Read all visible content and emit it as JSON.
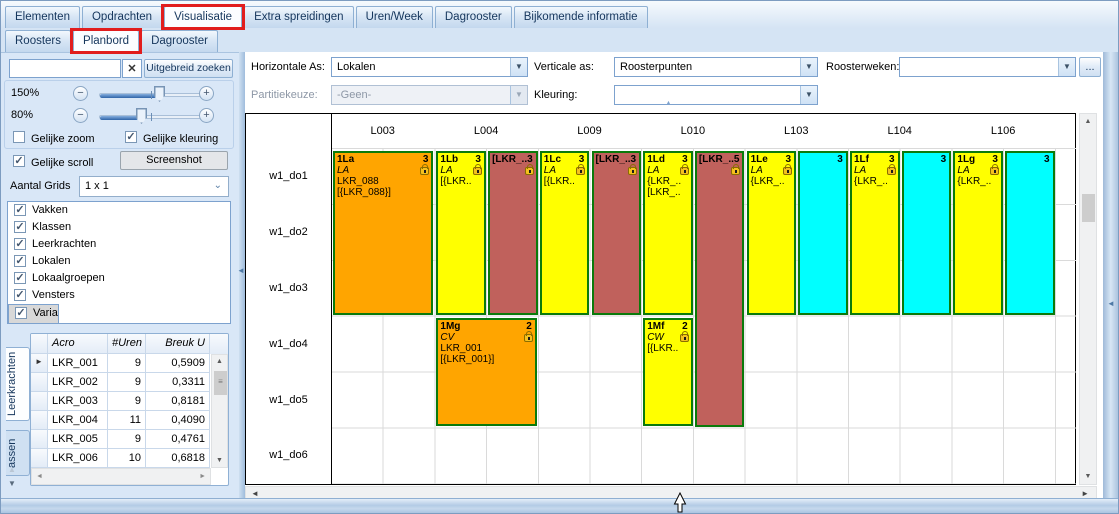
{
  "icons": {
    "clear": "✕",
    "dropdown_arrow": "▼",
    "chevron_down": "⌄",
    "more": "...",
    "scroll_up": "▲",
    "scroll_down": "▼",
    "scroll_left": "◄",
    "scroll_right": "►",
    "collapse_left": "◄",
    "collapse_up": "▲",
    "row_marker": "►",
    "check": "✓",
    "minus": "−",
    "plus": "+",
    "grip": "≡"
  },
  "main_tabs": {
    "items": [
      {
        "label": "Elementen",
        "selected": false,
        "annotated": false
      },
      {
        "label": "Opdrachten",
        "selected": false,
        "annotated": false
      },
      {
        "label": "Visualisatie",
        "selected": true,
        "annotated": true
      },
      {
        "label": "Extra spreidingen",
        "selected": false,
        "annotated": false
      },
      {
        "label": "Uren/Week",
        "selected": false,
        "annotated": false
      },
      {
        "label": "Dagrooster",
        "selected": false,
        "annotated": false
      },
      {
        "label": "Bijkomende informatie",
        "selected": false,
        "annotated": false
      }
    ]
  },
  "sub_tabs": {
    "items": [
      {
        "label": "Roosters",
        "selected": false,
        "annotated": false
      },
      {
        "label": "Planbord",
        "selected": true,
        "annotated": true
      },
      {
        "label": "Dagrooster",
        "selected": false,
        "annotated": false
      }
    ]
  },
  "left_panel": {
    "search": {
      "value": "",
      "placeholder": "",
      "button_label": "Uitgebreid zoeken"
    },
    "zoom_rows": [
      {
        "label": "150%"
      },
      {
        "label": "80%"
      }
    ],
    "checkboxes": {
      "gelijke_zoom": {
        "label": "Gelijke zoom",
        "checked": false
      },
      "gelijke_kleuring": {
        "label": "Gelijke kleuring",
        "checked": true
      },
      "gelijke_scroll": {
        "label": "Gelijke scroll",
        "checked": true
      }
    },
    "screenshot_button": "Screenshot",
    "aantal_grids": {
      "label": "Aantal Grids",
      "value": "1 x 1"
    },
    "layers": {
      "items": [
        {
          "label": "Vakken",
          "checked": true,
          "selected": false
        },
        {
          "label": "Klassen",
          "checked": true,
          "selected": false
        },
        {
          "label": "Leerkrachten",
          "checked": true,
          "selected": false
        },
        {
          "label": "Lokalen",
          "checked": true,
          "selected": false
        },
        {
          "label": "Lokaalgroepen",
          "checked": true,
          "selected": false
        },
        {
          "label": "Vensters",
          "checked": true,
          "selected": false
        },
        {
          "label": "Varia",
          "checked": true,
          "selected": true
        }
      ]
    },
    "side_tabs": {
      "items": [
        {
          "label": "Leerkrachten",
          "active": true
        },
        {
          "label": "assen",
          "active": false
        }
      ]
    },
    "table": {
      "columns": [
        "Acro",
        "#Uren",
        "Breuk U"
      ],
      "rows": [
        {
          "acro": "LKR_001",
          "uren": "9",
          "breuk": "0,5909",
          "marker": true
        },
        {
          "acro": "LKR_002",
          "uren": "9",
          "breuk": "0,3311",
          "marker": false
        },
        {
          "acro": "LKR_003",
          "uren": "9",
          "breuk": "0,8181",
          "marker": false
        },
        {
          "acro": "LKR_004",
          "uren": "11",
          "breuk": "0,4090",
          "marker": false
        },
        {
          "acro": "LKR_005",
          "uren": "9",
          "breuk": "0,4761",
          "marker": false
        },
        {
          "acro": "LKR_006",
          "uren": "10",
          "breuk": "0,6818",
          "marker": false
        }
      ]
    }
  },
  "toolbar": {
    "horizontale_as": {
      "label": "Horizontale As:",
      "value": "Lokalen"
    },
    "verticale_as": {
      "label": "Verticale as:",
      "value": "Roosterpunten"
    },
    "roosterweken": {
      "label": "Roosterweken:",
      "value": "",
      "more_label": "..."
    },
    "partitiekeuze": {
      "label": "Partitiekeuze:",
      "value": "-Geen-",
      "disabled": true
    },
    "kleuring": {
      "label": "Kleuring:",
      "value": ""
    }
  },
  "grid": {
    "columns": [
      "L003",
      "L004",
      "L009",
      "L010",
      "L103",
      "L104",
      "L106"
    ],
    "rows": [
      "w1_do1",
      "w1_do2",
      "w1_do3",
      "w1_do4",
      "w1_do5",
      "w1_do6"
    ],
    "blocks": [
      {
        "title": "1La",
        "count": "3",
        "col": 0,
        "sub": "full",
        "row": 0,
        "span": 3,
        "color": "orange",
        "lines": [
          "LA",
          "LKR_088",
          "[{LKR_088}]"
        ],
        "lock": true
      },
      {
        "title": "1Lb",
        "count": "3",
        "col": 1,
        "sub": 0,
        "row": 0,
        "span": 3,
        "color": "yellow",
        "lines": [
          "LA",
          "[{LKR.."
        ],
        "lock": true
      },
      {
        "title": "[LKR_..",
        "count": "3",
        "col": 1,
        "sub": 1,
        "row": 0,
        "span": 3,
        "color": "red",
        "lines": [],
        "lock": true
      },
      {
        "title": "1Lc",
        "count": "3",
        "col": 2,
        "sub": 0,
        "row": 0,
        "span": 3,
        "color": "yellow",
        "lines": [
          "LA",
          "[{LKR.."
        ],
        "lock": true
      },
      {
        "title": "[LKR_..",
        "count": "3",
        "col": 2,
        "sub": 1,
        "row": 0,
        "span": 3,
        "color": "red",
        "lines": [],
        "lock": true
      },
      {
        "title": "1Ld",
        "count": "3",
        "col": 3,
        "sub": 0,
        "row": 0,
        "span": 3,
        "color": "yellow",
        "lines": [
          "LA",
          "{LKR_..",
          "[LKR_.."
        ],
        "lock": true
      },
      {
        "title": "[LKR_..",
        "count": "5",
        "col": 3,
        "sub": 1,
        "row": 0,
        "span": 5,
        "color": "red",
        "lines": [],
        "lock": true
      },
      {
        "title": "1Le",
        "count": "3",
        "col": 4,
        "sub": 0,
        "row": 0,
        "span": 3,
        "color": "yellow",
        "lines": [
          "LA",
          "{LKR_.."
        ],
        "lock": true
      },
      {
        "title": "",
        "count": "3",
        "col": 4,
        "sub": 1,
        "row": 0,
        "span": 3,
        "color": "cyan",
        "lines": [],
        "lock": false
      },
      {
        "title": "1Lf",
        "count": "3",
        "col": 5,
        "sub": 0,
        "row": 0,
        "span": 3,
        "color": "yellow",
        "lines": [
          "LA",
          "{LKR_.."
        ],
        "lock": true
      },
      {
        "title": "",
        "count": "3",
        "col": 5,
        "sub": 1,
        "row": 0,
        "span": 3,
        "color": "cyan",
        "lines": [],
        "lock": false
      },
      {
        "title": "1Lg",
        "count": "3",
        "col": 6,
        "sub": 0,
        "row": 0,
        "span": 3,
        "color": "yellow",
        "lines": [
          "LA",
          "{LKR_.."
        ],
        "lock": true
      },
      {
        "title": "",
        "count": "3",
        "col": 6,
        "sub": 1,
        "row": 0,
        "span": 3,
        "color": "cyan",
        "lines": [],
        "lock": false
      },
      {
        "title": "1Mg",
        "count": "2",
        "col": 1,
        "sub": "full",
        "row": 3,
        "span": 2,
        "color": "orange",
        "lines": [
          "CV",
          "LKR_001",
          "[{LKR_001}]"
        ],
        "lock": true
      },
      {
        "title": "1Mf",
        "count": "2",
        "col": 3,
        "sub": 0,
        "row": 3,
        "span": 2,
        "color": "yellow",
        "lines": [
          "CW",
          "[{LKR.."
        ],
        "lock": true
      }
    ]
  },
  "colors": {
    "orange": "#FFA500",
    "yellow": "#FFFF00",
    "red": "#C0615C",
    "cyan": "#00FFFF",
    "block_border": "#0B7A0B",
    "annotation": "#E11D1D"
  }
}
